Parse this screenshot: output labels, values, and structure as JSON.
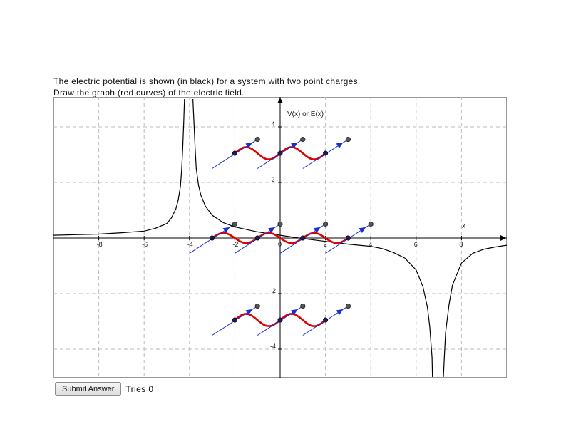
{
  "prompt": {
    "line1": "The electric potential is shown (in black) for a system with two point charges.",
    "line2": "Draw the graph (red curves) of the electric field."
  },
  "controls": {
    "submit_label": "Submit Answer",
    "tries_label": "Tries",
    "tries_count": "0"
  },
  "colors": {
    "potential": "#000000",
    "field_curve": "#e00000",
    "handle_vector": "#1a2fcc",
    "grid": "#bbbbbb"
  },
  "chart_data": {
    "type": "line",
    "title": "",
    "ylabel": "V(x) or E(x)",
    "xlabel": "x",
    "xlim": [
      -10,
      10
    ],
    "ylim": [
      -5,
      5
    ],
    "grid": true,
    "x_ticks": [
      "-8",
      "-6",
      "-4",
      "-2",
      "0",
      "2",
      "4",
      "6",
      "8"
    ],
    "y_ticks": [
      "4",
      "2",
      "-2",
      "-4"
    ],
    "potential_curve": {
      "name": "",
      "color": "#000000",
      "asymptotes_x": [
        -4,
        7
      ],
      "points": [
        [
          -10,
          0.1
        ],
        [
          -9,
          0.12
        ],
        [
          -8,
          0.14
        ],
        [
          -7,
          0.19
        ],
        [
          -6,
          0.25
        ],
        [
          -5.5,
          0.35
        ],
        [
          -5,
          0.52
        ],
        [
          -4.8,
          0.72
        ],
        [
          -4.6,
          1.05
        ],
        [
          -4.5,
          1.35
        ],
        [
          -4.4,
          1.85
        ],
        [
          -4.35,
          2.4
        ],
        [
          -4.3,
          3.2
        ],
        [
          -4.25,
          4.2
        ],
        [
          -4.22,
          5.0
        ]
      ],
      "points_2": [
        [
          -3.85,
          5.0
        ],
        [
          -3.8,
          4.1
        ],
        [
          -3.75,
          3.2
        ],
        [
          -3.7,
          2.5
        ],
        [
          -3.6,
          1.9
        ],
        [
          -3.5,
          1.55
        ],
        [
          -3.3,
          1.15
        ],
        [
          -3,
          0.82
        ],
        [
          -2.5,
          0.55
        ],
        [
          -2,
          0.4
        ],
        [
          -1,
          0.22
        ],
        [
          0,
          0.1
        ],
        [
          1,
          -0.02
        ],
        [
          2,
          -0.12
        ],
        [
          3,
          -0.22
        ],
        [
          4,
          -0.3
        ],
        [
          4.5,
          -0.38
        ],
        [
          5,
          -0.52
        ],
        [
          5.5,
          -0.72
        ],
        [
          6,
          -1.15
        ],
        [
          6.3,
          -1.75
        ],
        [
          6.5,
          -2.5
        ],
        [
          6.6,
          -3.2
        ],
        [
          6.7,
          -4.3
        ],
        [
          6.72,
          -5.0
        ]
      ],
      "points_3": [
        [
          7.2,
          -5.0
        ],
        [
          7.25,
          -4.2
        ],
        [
          7.3,
          -3.4
        ],
        [
          7.45,
          -2.4
        ],
        [
          7.6,
          -1.7
        ],
        [
          7.8,
          -1.3
        ],
        [
          8,
          -0.9
        ],
        [
          8.5,
          -0.55
        ],
        [
          9,
          -0.4
        ],
        [
          9.5,
          -0.32
        ],
        [
          10,
          -0.26
        ]
      ]
    },
    "field_curves": [
      {
        "name": "",
        "x": [
          -2,
          0
        ],
        "y_mid": 3.05,
        "amp": 0.22
      },
      {
        "name": "",
        "x": [
          0,
          2
        ],
        "y_mid": 3.05,
        "amp": 0.22
      },
      {
        "name": "",
        "x": [
          -3,
          -1
        ],
        "y_mid": 0.0,
        "amp": 0.18
      },
      {
        "name": "",
        "x": [
          -1,
          1
        ],
        "y_mid": 0.0,
        "amp": 0.18
      },
      {
        "name": "",
        "x": [
          1,
          3
        ],
        "y_mid": 0.0,
        "amp": 0.18
      },
      {
        "name": "",
        "x": [
          -2,
          0
        ],
        "y_mid": -2.95,
        "amp": 0.22
      },
      {
        "name": "",
        "x": [
          0,
          2
        ],
        "y_mid": -2.95,
        "amp": 0.22
      }
    ],
    "handles": [
      {
        "x": -2,
        "y": 3.05
      },
      {
        "x": 0,
        "y": 3.05
      },
      {
        "x": 2,
        "y": 3.05
      },
      {
        "x": -3,
        "y": 0.0
      },
      {
        "x": -1,
        "y": 0.0
      },
      {
        "x": 1,
        "y": 0.0
      },
      {
        "x": 3,
        "y": 0.0
      },
      {
        "x": -2,
        "y": -2.95
      },
      {
        "x": 0,
        "y": -2.95
      },
      {
        "x": 2,
        "y": -2.95
      }
    ],
    "handle_vector": {
      "dx": 1.0,
      "dy": 0.5
    },
    "handle_tail": {
      "dx": -1.0,
      "dy": -0.55
    }
  }
}
